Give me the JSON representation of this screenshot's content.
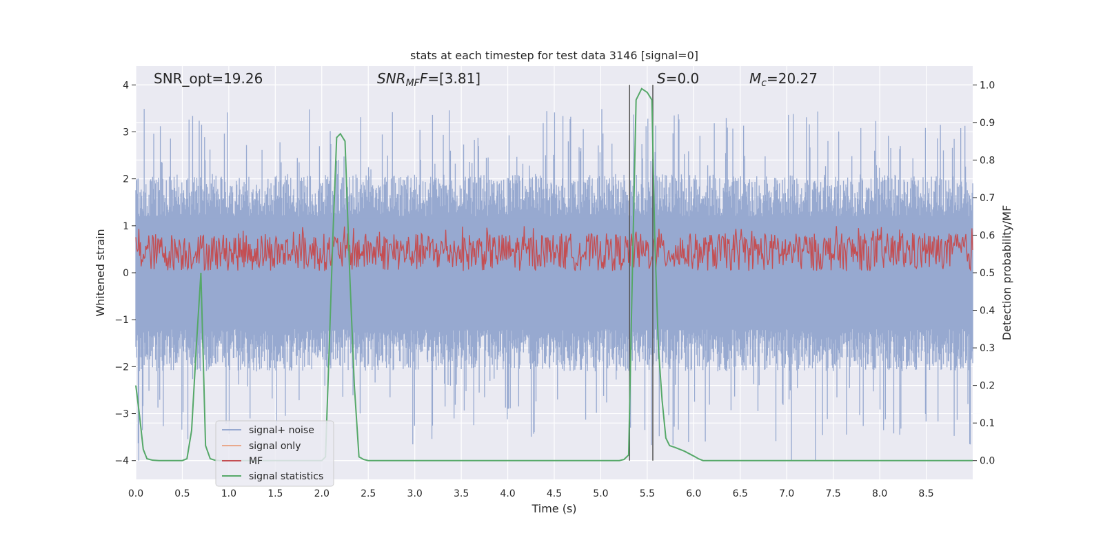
{
  "chart_data": {
    "type": "line",
    "title": "stats at each timestep for test data 3146 [signal=0]",
    "xlabel": "Time (s)",
    "ylabel": "Whitened strain",
    "y2label": "Detection probability/MF",
    "xlim": [
      0.0,
      9.0
    ],
    "ylim": [
      -4.4,
      4.4
    ],
    "y2lim": [
      -0.05,
      1.05
    ],
    "xticks": [
      "0.0",
      "0.5",
      "1.0",
      "1.5",
      "2.0",
      "2.5",
      "3.0",
      "3.5",
      "4.0",
      "4.5",
      "5.0",
      "5.5",
      "6.0",
      "6.5",
      "7.0",
      "7.5",
      "8.0",
      "8.5"
    ],
    "yticks": [
      "4",
      "3",
      "2",
      "1",
      "0",
      "−1",
      "−2",
      "−3",
      "−4"
    ],
    "y2ticks": [
      "1.0",
      "0.9",
      "0.8",
      "0.7",
      "0.6",
      "0.5",
      "0.4",
      "0.3",
      "0.2",
      "0.1",
      "0.0"
    ],
    "annotations": {
      "snr_opt": "SNR_opt=19.26",
      "snr_mf_main": "SNR",
      "snr_mf_sub": "MF",
      "snr_mf_value": "=[3.81]",
      "s_main": "S",
      "s_value": "=0.0",
      "mc_main": "M",
      "mc_sub": "c",
      "mc_value": "=20.27"
    },
    "vlines_x": [
      5.31,
      5.56
    ],
    "legend_position": "lower-left",
    "series": [
      {
        "name": "signal+ noise",
        "color": "#97a9d0",
        "note": "noise band roughly ±1.5 with peaks to about ±3.5"
      },
      {
        "name": "signal only",
        "color": "#e9a98c"
      },
      {
        "name": "MF",
        "color": "#c44e52",
        "note": "y2 values around 0.5 to 0.62"
      },
      {
        "name": "signal statistics",
        "color": "#55a868",
        "x": [
          0.0,
          0.04,
          0.08,
          0.12,
          0.18,
          0.25,
          0.35,
          0.45,
          0.5,
          0.55,
          0.6,
          0.65,
          0.7,
          0.75,
          0.8,
          0.85,
          0.9,
          1.0,
          1.5,
          2.0,
          2.04,
          2.08,
          2.12,
          2.16,
          2.2,
          2.25,
          2.3,
          2.35,
          2.4,
          2.45,
          2.5,
          3.0,
          4.0,
          5.0,
          5.2,
          5.25,
          5.3,
          5.34,
          5.38,
          5.44,
          5.5,
          5.55,
          5.58,
          5.62,
          5.66,
          5.7,
          5.74,
          5.8,
          5.9,
          6.0,
          6.05,
          6.1,
          7.0,
          8.0,
          9.0
        ],
        "y2": [
          0.2,
          0.12,
          0.03,
          0.005,
          0.001,
          0.0,
          0.0,
          0.0,
          0.0,
          0.005,
          0.08,
          0.3,
          0.5,
          0.04,
          0.005,
          0.001,
          0.0,
          0.0,
          0.0,
          0.0,
          0.01,
          0.3,
          0.6,
          0.86,
          0.87,
          0.85,
          0.5,
          0.2,
          0.01,
          0.003,
          0.0,
          0.0,
          0.0,
          0.0,
          0.0,
          0.003,
          0.015,
          0.5,
          0.96,
          0.99,
          0.98,
          0.96,
          0.6,
          0.3,
          0.16,
          0.06,
          0.04,
          0.035,
          0.025,
          0.012,
          0.005,
          0.0,
          0.0,
          0.0,
          0.0
        ]
      }
    ]
  }
}
